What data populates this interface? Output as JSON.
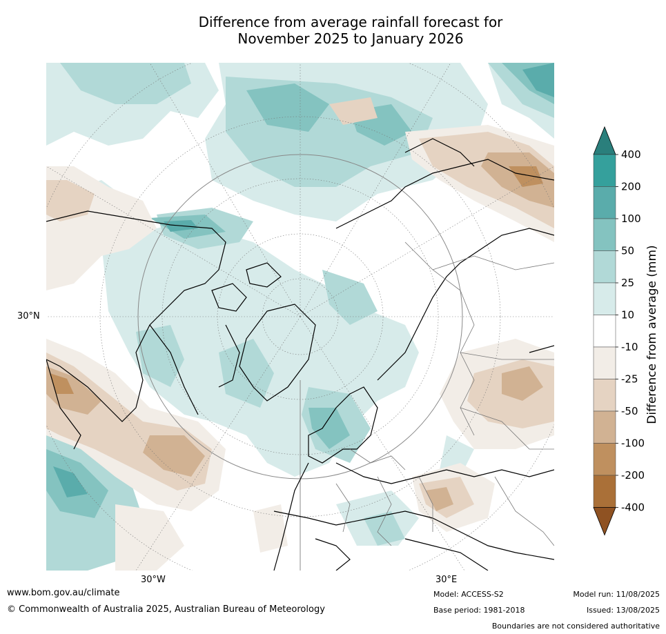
{
  "title": {
    "line1": "Difference from average rainfall forecast for",
    "line2": "November 2025 to January 2026"
  },
  "map": {
    "projection": "north-polar-stereographic",
    "lat_labels": [
      "30°N"
    ],
    "lon_labels": [
      "30°W",
      "30°E"
    ]
  },
  "colorbar": {
    "title": "Difference from average (mm)",
    "ticks": [
      "400",
      "200",
      "100",
      "50",
      "25",
      "10",
      "-10",
      "-25",
      "-50",
      "-100",
      "-200",
      "-400"
    ],
    "colors": [
      "#2a7f7c",
      "#35a09c",
      "#5aacab",
      "#84c3c0",
      "#b1d9d7",
      "#d7ebea",
      "#ffffff",
      "#f2ede7",
      "#e5d3c2",
      "#d1b293",
      "#bf905f",
      "#aa7038",
      "#8f5222"
    ]
  },
  "footer": {
    "website": "www.bom.gov.au/climate",
    "copyright": "© Commonwealth of Australia 2025, Australian Bureau of Meteorology",
    "model": "Model: ACCESS-S2",
    "base_period": "Base period: 1981-2018",
    "model_run": "Model run: 11/08/2025",
    "issued": "Issued: 13/08/2025",
    "disclaimer": "Boundaries are not considered authoritative"
  }
}
